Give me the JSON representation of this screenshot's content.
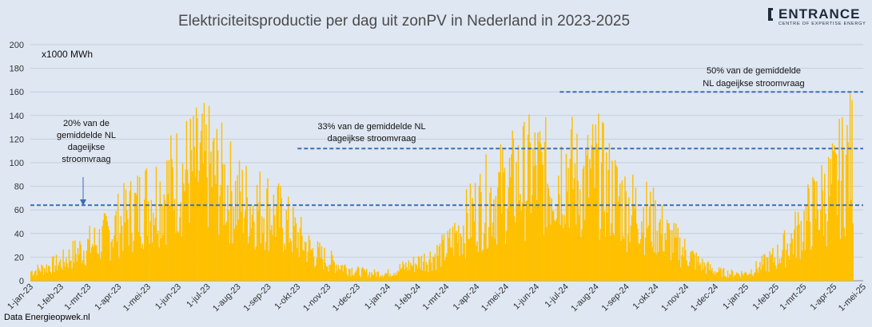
{
  "page": {
    "footer": "Data Energieopwek.nl"
  },
  "logo": {
    "name": "ENTRANCE",
    "subtitle": "CENTRE OF EXPERTISE ENERGY",
    "icon": "bracket-logo-icon"
  },
  "colors": {
    "bars": "#ffc000",
    "reference_line": "#3b6fb6",
    "background": "#dfe7f2"
  },
  "chart_data": {
    "type": "bar",
    "title": "Elektriciteitsproductie per dag uit zonPV in Nederland in 2023-2025",
    "ylabel": "x1000 MWh",
    "ylim": [
      0,
      200
    ],
    "yticks": [
      0,
      20,
      40,
      60,
      80,
      100,
      120,
      140,
      160,
      180,
      200
    ],
    "xlim": [
      "2023-01-01",
      "2025-05-01"
    ],
    "xtick_labels": [
      "1-jan-23",
      "1-feb-23",
      "1-mrt-23",
      "1-apr-23",
      "1-mei-23",
      "1-jun-23",
      "1-jul-23",
      "1-aug-23",
      "1-sep-23",
      "1-okt-23",
      "1-nov-23",
      "1-dec-23",
      "1-jan-24",
      "1-feb-24",
      "1-mrt-24",
      "1-apr-24",
      "1-mei-24",
      "1-jun-24",
      "1-jul-24",
      "1-aug-24",
      "1-sep-24",
      "1-okt-24",
      "1-nov-24",
      "1-dec-24",
      "1-jan-25",
      "1-feb-25",
      "1-mrt-25",
      "1-apr-25",
      "1-mei-25"
    ],
    "grid": true,
    "series": [
      {
        "values_note_free": true,
        "x": [
          "2023-01-01",
          "2023-01-15",
          "2023-02-01",
          "2023-02-15",
          "2023-03-01",
          "2023-03-15",
          "2023-04-01",
          "2023-04-15",
          "2023-05-01",
          "2023-05-15",
          "2023-06-01",
          "2023-06-15",
          "2023-07-01",
          "2023-07-15",
          "2023-08-01",
          "2023-08-15",
          "2023-09-01",
          "2023-09-15",
          "2023-10-01",
          "2023-10-15",
          "2023-11-01",
          "2023-11-15",
          "2023-12-01",
          "2023-12-15",
          "2024-01-01",
          "2024-01-15",
          "2024-02-01",
          "2024-02-15",
          "2024-03-01",
          "2024-03-15",
          "2024-04-01",
          "2024-04-15",
          "2024-05-01",
          "2024-05-15",
          "2024-06-01",
          "2024-06-15",
          "2024-07-01",
          "2024-07-15",
          "2024-08-01",
          "2024-08-15",
          "2024-09-01",
          "2024-09-15",
          "2024-10-01",
          "2024-10-15",
          "2024-11-01",
          "2024-11-15",
          "2024-12-01",
          "2024-12-15",
          "2025-01-01",
          "2025-01-15",
          "2025-02-01",
          "2025-02-15",
          "2025-03-01",
          "2025-03-15",
          "2025-04-01",
          "2025-04-15",
          "2025-04-20"
        ],
        "values": [
          10,
          14,
          20,
          30,
          38,
          45,
          62,
          75,
          88,
          95,
          112,
          120,
          122,
          108,
          88,
          82,
          78,
          65,
          48,
          32,
          22,
          16,
          10,
          8,
          8,
          14,
          20,
          26,
          35,
          55,
          78,
          90,
          100,
          110,
          118,
          108,
          125,
          102,
          118,
          98,
          80,
          75,
          62,
          45,
          30,
          18,
          10,
          8,
          8,
          16,
          26,
          42,
          62,
          82,
          100,
          130,
          132
        ]
      }
    ],
    "annotations": [
      {
        "text_lines": [
          "20% van de",
          "gemiddelde NL",
          "dageijkse",
          "stroomvraag"
        ],
        "line_value": 64,
        "line_from": "2023-01-01",
        "line_to": "2025-05-01"
      },
      {
        "text_lines": [
          "33% van de gemiddelde NL",
          "dageijkse stroomvraag"
        ],
        "line_value": 112,
        "line_from": "2023-10-01",
        "line_to": "2025-05-01"
      },
      {
        "text_lines": [
          "50% van de gemiddelde",
          "NL dageijkse stroomvraag"
        ],
        "line_value": 160,
        "line_from": "2024-06-25",
        "line_to": "2025-05-01"
      }
    ]
  }
}
